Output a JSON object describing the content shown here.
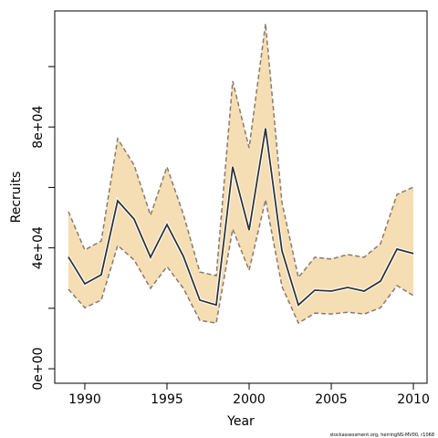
{
  "chart_data": {
    "type": "line",
    "xlabel": "Year",
    "ylabel": "Recruits",
    "footnote": "stockassessment.org, herringNS-MV00, r1068",
    "x": [
      1989,
      1990,
      1991,
      1992,
      1993,
      1994,
      1995,
      1996,
      1997,
      1998,
      1999,
      2000,
      2001,
      2002,
      2003,
      2004,
      2005,
      2006,
      2007,
      2008,
      2009,
      2010
    ],
    "values": [
      37000,
      28100,
      31100,
      55600,
      49500,
      36900,
      47700,
      37200,
      22700,
      21100,
      66800,
      45900,
      79500,
      39000,
      21100,
      26000,
      25700,
      26900,
      25700,
      29000,
      39600,
      38100
    ],
    "upper": [
      52000,
      39300,
      42300,
      76100,
      67400,
      50800,
      66800,
      51100,
      32000,
      30800,
      95200,
      73100,
      114200,
      55000,
      30200,
      36900,
      36300,
      37800,
      36900,
      41400,
      57700,
      60100
    ],
    "lower": [
      26300,
      20200,
      22700,
      40800,
      36000,
      26600,
      33800,
      26600,
      16000,
      15100,
      46200,
      32600,
      55900,
      27200,
      15100,
      18400,
      18100,
      18700,
      18100,
      20200,
      27500,
      24200
    ],
    "color": "#333333",
    "band_color": "#f5deb3",
    "bound_color": "#8a7a6e",
    "xlim": [
      1988.17,
      2010.83
    ],
    "ylim": [
      -4800,
      118400
    ],
    "xticks": [
      1990,
      1995,
      2000,
      2005,
      2010
    ],
    "yticks": [
      {
        "value": 0,
        "label": "0e+00"
      },
      {
        "value": 40000,
        "label": "4e+04"
      },
      {
        "value": 80000,
        "label": "8e+04"
      }
    ],
    "yminor_ticks": [
      20000,
      60000,
      100000
    ]
  }
}
